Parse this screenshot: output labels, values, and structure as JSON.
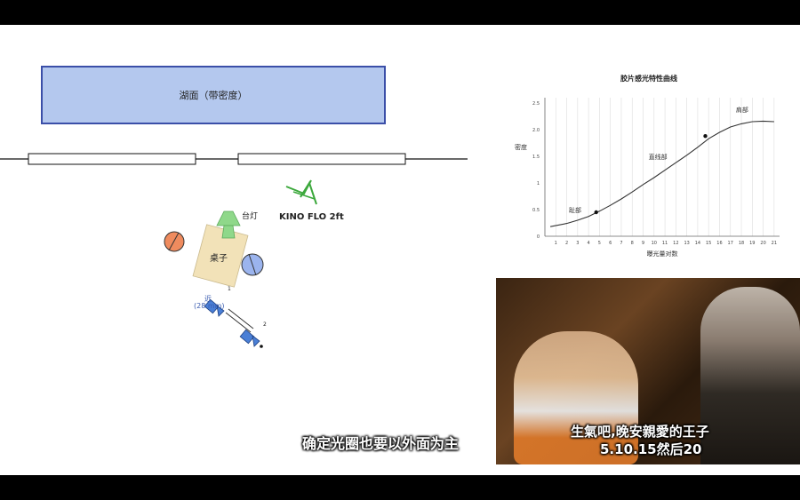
{
  "diagram": {
    "lake_label": "湖面（带密度）",
    "lamp_label": "台灯",
    "table_label": "桌子",
    "light_label": "KINO FLO 2ft",
    "camera_label": "近",
    "camera_lens": "(28 mm)",
    "camera_num_1": "1",
    "camera_num_2": "2"
  },
  "chart_data": {
    "type": "line",
    "title": "胶片感光特性曲线",
    "xlabel": "曝光量对数",
    "ylabel": "密度",
    "x_ticks": [
      1,
      2,
      3,
      4,
      5,
      6,
      7,
      8,
      9,
      10,
      11,
      12,
      13,
      14,
      15,
      16,
      17,
      18,
      19,
      20,
      21
    ],
    "y_ticks": [
      "0",
      "0.5",
      "1",
      "1.5",
      "2.0",
      "2.5"
    ],
    "xlim": [
      0,
      21.5
    ],
    "ylim": [
      0,
      2.6
    ],
    "grid": "vertical",
    "series": [
      {
        "x": [
          0.5,
          2,
          3,
          4,
          5,
          6,
          7,
          8,
          9,
          10,
          11,
          12,
          13,
          14,
          15,
          16,
          17,
          18,
          19,
          20,
          21
        ],
        "y": [
          0.18,
          0.24,
          0.3,
          0.37,
          0.47,
          0.58,
          0.7,
          0.83,
          0.97,
          1.1,
          1.24,
          1.38,
          1.52,
          1.67,
          1.83,
          1.95,
          2.05,
          2.11,
          2.15,
          2.16,
          2.15
        ]
      }
    ],
    "points": [
      {
        "x": 4.7,
        "y": 0.45
      },
      {
        "x": 14.7,
        "y": 1.88
      }
    ],
    "annotations": [
      {
        "text": "趾部",
        "x": 2.2,
        "y": 0.45
      },
      {
        "text": "直线部",
        "x": 9.5,
        "y": 1.45
      },
      {
        "text": "肩部",
        "x": 17.5,
        "y": 2.33
      }
    ]
  },
  "subtitles": {
    "main": "确定光圈也要以外面为主",
    "film_line1": "生氣吧,晚安親愛的王子",
    "film_line2": "5.10.15然后20"
  },
  "colors": {
    "lake_fill": "#b4c8ee",
    "lake_border": "#3b4fa8",
    "lamp": "#8fd88a",
    "table": "#f2e2b8",
    "person_orange": "#ef8b5e",
    "person_blue": "#9bb4ee",
    "camera": "#4a7fd6"
  }
}
